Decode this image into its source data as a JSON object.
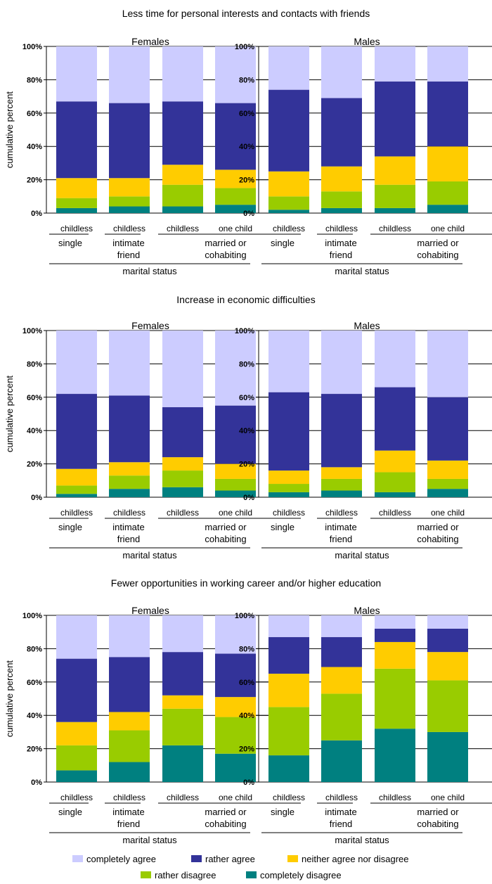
{
  "colors": {
    "completely agree": "#ccccff",
    "rather agree": "#333399",
    "neither agree nor disagree": "#ffcc00",
    "rather disagree": "#99cc00",
    "completely disagree": "#008080"
  },
  "legend": {
    "items": [
      "completely agree",
      "rather agree",
      "neither agree nor disagree",
      "rather disagree",
      "completely disagree"
    ]
  },
  "chart_data": [
    {
      "type": "bar",
      "stacked": true,
      "title": "Less time for personal interests and contacts with friends",
      "panel": "Females",
      "ylabel": "cumulative percent",
      "xlabel": "marital status",
      "yticks": [
        "0%",
        "20%",
        "40%",
        "60%",
        "80%",
        "100%"
      ],
      "ylim": [
        0,
        100
      ],
      "categories": [
        "childless",
        "childless",
        "childless",
        "one child"
      ],
      "groups": [
        "single",
        "intimate friend",
        "married or cohabiting"
      ],
      "series": [
        {
          "name": "completely disagree",
          "values": [
            3,
            4,
            4,
            5
          ]
        },
        {
          "name": "rather disagree",
          "values": [
            6,
            6,
            13,
            10
          ]
        },
        {
          "name": "neither agree nor disagree",
          "values": [
            12,
            11,
            12,
            11
          ]
        },
        {
          "name": "rather agree",
          "values": [
            46,
            45,
            38,
            40
          ]
        },
        {
          "name": "completely agree",
          "values": [
            33,
            34,
            33,
            34
          ]
        }
      ]
    },
    {
      "type": "bar",
      "stacked": true,
      "title": "Less time for personal interests and contacts with friends",
      "panel": "Males",
      "ylabel": "",
      "xlabel": "marital status",
      "yticks": [
        "0%",
        "20%",
        "40%",
        "60%",
        "80%",
        "100%"
      ],
      "ylim": [
        0,
        100
      ],
      "categories": [
        "childless",
        "childless",
        "childless",
        "one child"
      ],
      "groups": [
        "single",
        "intimate friend",
        "married or cohabiting"
      ],
      "series": [
        {
          "name": "completely disagree",
          "values": [
            2,
            3,
            3,
            5
          ]
        },
        {
          "name": "rather disagree",
          "values": [
            8,
            10,
            14,
            14
          ]
        },
        {
          "name": "neither agree nor disagree",
          "values": [
            15,
            15,
            17,
            21
          ]
        },
        {
          "name": "rather agree",
          "values": [
            49,
            41,
            45,
            39
          ]
        },
        {
          "name": "completely agree",
          "values": [
            26,
            31,
            21,
            21
          ]
        }
      ]
    },
    {
      "type": "bar",
      "stacked": true,
      "title": "Increase in economic difficulties",
      "panel": "Females",
      "ylabel": "cumulative percent",
      "xlabel": "marital status",
      "yticks": [
        "0%",
        "20%",
        "40%",
        "60%",
        "80%",
        "100%"
      ],
      "ylim": [
        0,
        100
      ],
      "categories": [
        "childless",
        "childless",
        "childless",
        "one child"
      ],
      "groups": [
        "single",
        "intimate friend",
        "married or cohabiting"
      ],
      "series": [
        {
          "name": "completely disagree",
          "values": [
            2,
            5,
            6,
            4
          ]
        },
        {
          "name": "rather disagree",
          "values": [
            5,
            8,
            10,
            7
          ]
        },
        {
          "name": "neither agree nor disagree",
          "values": [
            10,
            8,
            8,
            9
          ]
        },
        {
          "name": "rather agree",
          "values": [
            45,
            40,
            30,
            35
          ]
        },
        {
          "name": "completely agree",
          "values": [
            38,
            39,
            46,
            45
          ]
        }
      ]
    },
    {
      "type": "bar",
      "stacked": true,
      "title": "Increase in economic difficulties",
      "panel": "Males",
      "ylabel": "",
      "xlabel": "marital status",
      "yticks": [
        "0%",
        "20%",
        "40%",
        "60%",
        "80%",
        "100%"
      ],
      "ylim": [
        0,
        100
      ],
      "categories": [
        "childless",
        "childless",
        "childless",
        "one child"
      ],
      "groups": [
        "single",
        "intimate friend",
        "married or cohabiting"
      ],
      "series": [
        {
          "name": "completely disagree",
          "values": [
            3,
            4,
            3,
            5
          ]
        },
        {
          "name": "rather disagree",
          "values": [
            5,
            7,
            12,
            6
          ]
        },
        {
          "name": "neither agree nor disagree",
          "values": [
            8,
            7,
            13,
            11
          ]
        },
        {
          "name": "rather agree",
          "values": [
            47,
            44,
            38,
            38
          ]
        },
        {
          "name": "completely agree",
          "values": [
            37,
            38,
            34,
            40
          ]
        }
      ]
    },
    {
      "type": "bar",
      "stacked": true,
      "title": "Fewer opportunities in working career and/or higher education",
      "panel": "Females",
      "ylabel": "cumulative percent",
      "xlabel": "marital status",
      "yticks": [
        "0%",
        "20%",
        "40%",
        "60%",
        "80%",
        "100%"
      ],
      "ylim": [
        0,
        100
      ],
      "categories": [
        "childless",
        "childless",
        "childless",
        "one child"
      ],
      "groups": [
        "single",
        "intimate friend",
        "married or cohabiting"
      ],
      "series": [
        {
          "name": "completely disagree",
          "values": [
            7,
            12,
            22,
            17
          ]
        },
        {
          "name": "rather disagree",
          "values": [
            15,
            19,
            22,
            22
          ]
        },
        {
          "name": "neither agree nor disagree",
          "values": [
            14,
            11,
            8,
            12
          ]
        },
        {
          "name": "rather agree",
          "values": [
            38,
            33,
            26,
            26
          ]
        },
        {
          "name": "completely agree",
          "values": [
            26,
            25,
            22,
            23
          ]
        }
      ]
    },
    {
      "type": "bar",
      "stacked": true,
      "title": "Fewer opportunities in working career and/or higher education",
      "panel": "Males",
      "ylabel": "",
      "xlabel": "marital status",
      "yticks": [
        "0%",
        "20%",
        "40%",
        "60%",
        "80%",
        "100%"
      ],
      "ylim": [
        0,
        100
      ],
      "categories": [
        "childless",
        "childless",
        "childless",
        "one child"
      ],
      "groups": [
        "single",
        "intimate friend",
        "married or cohabiting"
      ],
      "series": [
        {
          "name": "completely disagree",
          "values": [
            16,
            25,
            32,
            30
          ]
        },
        {
          "name": "rather disagree",
          "values": [
            29,
            28,
            36,
            31
          ]
        },
        {
          "name": "neither agree nor disagree",
          "values": [
            20,
            16,
            16,
            17
          ]
        },
        {
          "name": "rather agree",
          "values": [
            22,
            18,
            8,
            14
          ]
        },
        {
          "name": "completely agree",
          "values": [
            13,
            13,
            8,
            8
          ]
        }
      ]
    }
  ]
}
